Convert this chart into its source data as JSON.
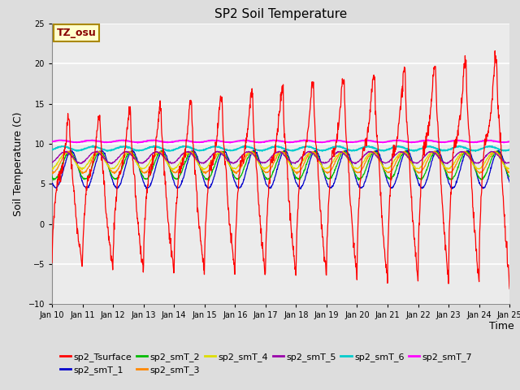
{
  "title": "SP2 Soil Temperature",
  "xlabel": "Time",
  "ylabel": "Soil Temperature (C)",
  "ylim": [
    -10,
    25
  ],
  "yticks": [
    -10,
    -5,
    0,
    5,
    10,
    15,
    20,
    25
  ],
  "x_tick_labels": [
    "Jan 10",
    "Jan 11",
    "Jan 12",
    "Jan 13",
    "Jan 14",
    "Jan 15",
    "Jan 16",
    "Jan 17",
    "Jan 18",
    "Jan 19",
    "Jan 20",
    "Jan 21",
    "Jan 22",
    "Jan 23",
    "Jan 24",
    "Jan 25"
  ],
  "annotation_text": "TZ_osu",
  "annotation_color": "#880000",
  "annotation_bg": "#ffffcc",
  "annotation_border": "#aa8800",
  "series_colors": {
    "sp2_Tsurface": "#ff0000",
    "sp2_smT_1": "#0000cc",
    "sp2_smT_2": "#00bb00",
    "sp2_smT_3": "#ff8800",
    "sp2_smT_4": "#dddd00",
    "sp2_smT_5": "#9900aa",
    "sp2_smT_6": "#00cccc",
    "sp2_smT_7": "#ff00ff"
  },
  "bg_color": "#dddddd",
  "plot_bg_color": "#ebebeb",
  "grid_color": "#ffffff",
  "title_fontsize": 11,
  "axis_label_fontsize": 9,
  "tick_fontsize": 7,
  "legend_fontsize": 8
}
